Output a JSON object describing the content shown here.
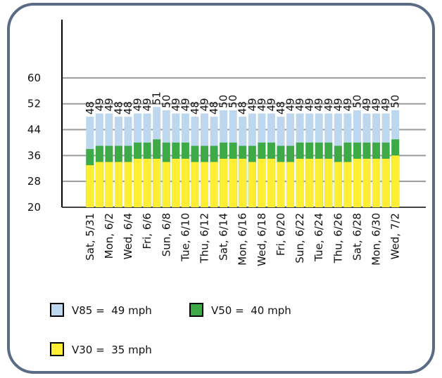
{
  "chart_data": {
    "type": "bar",
    "categories": [
      "Sat, 5/31",
      null,
      "Mon, 6/2",
      null,
      "Wed, 6/4",
      null,
      "Fri, 6/6",
      null,
      "Sun, 6/8",
      null,
      "Tue, 6/10",
      null,
      "Thu, 6/12",
      null,
      "Sat, 6/14",
      null,
      "Mon, 6/16",
      null,
      "Wed, 6/18",
      null,
      "Fri, 6/20",
      null,
      "Sun, 6/22",
      null,
      "Tue, 6/24",
      null,
      "Thu, 6/26",
      null,
      "Sat, 6/28",
      null,
      "Mon, 6/30",
      null,
      "Wed, 7/2"
    ],
    "series": [
      {
        "name": "V85 =  49 mph",
        "color": "#bdd7ee",
        "values": [
          48,
          49,
          49,
          48,
          48,
          49,
          49,
          51,
          50,
          49,
          49,
          48,
          49,
          48,
          50,
          50,
          48,
          49,
          49,
          49,
          48,
          49,
          49,
          49,
          49,
          49,
          49,
          49,
          50,
          49,
          49,
          49,
          50
        ]
      },
      {
        "name": "V50 =  40 mph",
        "color": "#3daa47",
        "values": [
          38,
          39,
          39,
          39,
          39,
          40,
          40,
          41,
          40,
          40,
          40,
          39,
          39,
          39,
          40,
          40,
          39,
          39,
          40,
          40,
          39,
          39,
          40,
          40,
          40,
          40,
          39,
          40,
          40,
          40,
          40,
          40,
          41
        ]
      },
      {
        "name": "V30 =  35 mph",
        "color": "#ffee33",
        "values": [
          33,
          34,
          34,
          34,
          34,
          35,
          35,
          35,
          34,
          35,
          35,
          34,
          34,
          34,
          35,
          35,
          35,
          34,
          35,
          35,
          34,
          34,
          35,
          35,
          35,
          35,
          34,
          34,
          35,
          35,
          35,
          35,
          36
        ]
      }
    ],
    "ylim": [
      20,
      78
    ],
    "yticks": [
      20,
      28,
      36,
      44,
      52,
      60
    ],
    "grid": true
  }
}
